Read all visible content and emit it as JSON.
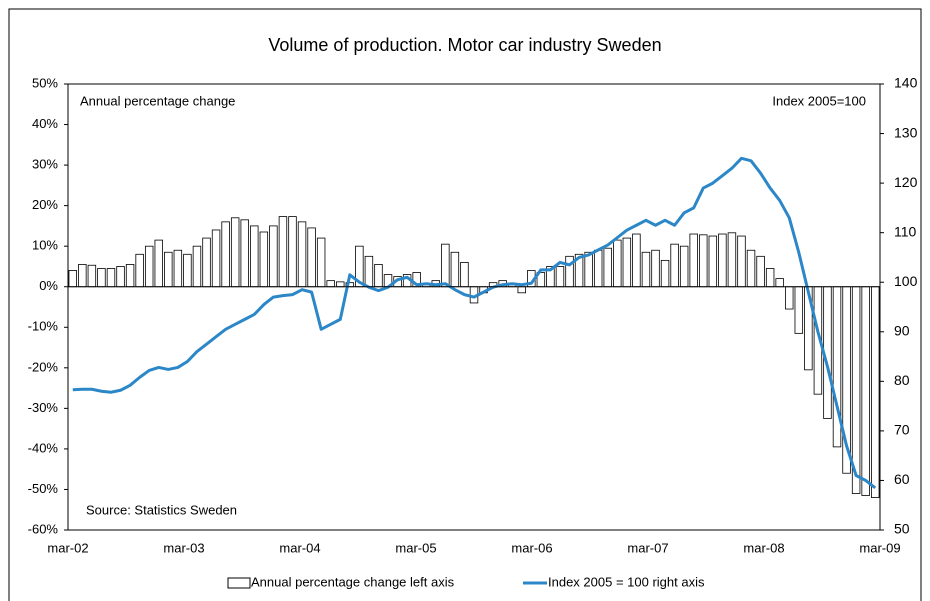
{
  "chart_data": {
    "type": "bar-line",
    "title": "Volume of production. Motor car industry Sweden",
    "annotations": [
      "Annual percentage change",
      "Index 2005=100",
      "Source: Statistics Sweden"
    ],
    "categories": [
      "mar-02",
      null,
      null,
      null,
      null,
      null,
      null,
      null,
      null,
      null,
      null,
      null,
      "mar-03",
      null,
      null,
      null,
      null,
      null,
      null,
      null,
      null,
      null,
      null,
      null,
      "mar-04",
      null,
      null,
      null,
      null,
      null,
      null,
      null,
      null,
      null,
      null,
      null,
      "mar-05",
      null,
      null,
      null,
      null,
      null,
      null,
      null,
      null,
      null,
      null,
      null,
      "mar-06",
      null,
      null,
      null,
      null,
      null,
      null,
      null,
      null,
      null,
      null,
      null,
      "mar-07",
      null,
      null,
      null,
      null,
      null,
      null,
      null,
      null,
      null,
      null,
      null,
      "mar-08",
      null,
      null,
      null,
      null,
      null,
      null,
      null,
      null,
      null,
      null,
      null,
      "mar-09"
    ],
    "series": [
      {
        "name": "Annual percentage change left axis",
        "type": "bar",
        "color": "#ffffff",
        "edge_color": "#000000",
        "axis": "y",
        "values": [
          4,
          5.5,
          5.3,
          4.5,
          4.5,
          5,
          5.5,
          8,
          10,
          11.5,
          8.5,
          9,
          8,
          10,
          12,
          14,
          16,
          17,
          16.5,
          15,
          13.5,
          15,
          17.3,
          17.3,
          16,
          14.5,
          12,
          1.5,
          1.2,
          1,
          10,
          7.5,
          5.5,
          3,
          2.5,
          3,
          3.5,
          0.5,
          1.5,
          10.5,
          8.5,
          6,
          -4,
          -1.5,
          1,
          1.5,
          0.5,
          -1.5,
          4,
          3.5,
          5,
          5,
          7.5,
          8,
          8.5,
          9,
          9.5,
          11.5,
          12,
          13,
          8.5,
          9,
          6.5,
          10.5,
          10,
          13,
          12.8,
          12.5,
          13,
          13.3,
          12.5,
          9,
          7.5,
          4.5,
          2,
          -5.5,
          -11.5,
          -20.5,
          -26.5,
          -32.5,
          -39.5,
          -46,
          -51,
          -51.5,
          -52
        ]
      },
      {
        "name": "Index 2005 = 100 right axis",
        "type": "line",
        "color": "#2b87c8",
        "axis": "y2",
        "values": [
          78.3,
          78.4,
          78.4,
          78,
          77.8,
          78.2,
          79.2,
          80.8,
          82.2,
          82.8,
          82.4,
          82.8,
          84,
          86,
          87.5,
          89,
          90.5,
          91.5,
          92.5,
          93.5,
          95.5,
          97,
          97.3,
          97.5,
          98.5,
          98,
          90.5,
          91.5,
          92.5,
          101.5,
          100,
          99,
          98.3,
          99,
          100.5,
          101,
          99.5,
          99.7,
          99.5,
          99.7,
          98.5,
          97.5,
          97,
          98,
          99,
          99.5,
          99.7,
          99.5,
          99.8,
          102.5,
          102.5,
          104,
          103.5,
          105,
          105.5,
          106.5,
          107.5,
          109,
          110.5,
          111.5,
          112.5,
          111.5,
          112.5,
          111.5,
          114,
          115,
          119,
          120,
          121.5,
          123,
          125,
          124.5,
          122,
          119,
          116.5,
          113,
          106,
          98,
          90,
          83,
          75,
          67,
          61,
          60,
          58.5
        ]
      }
    ],
    "ylim": [
      -60,
      50
    ],
    "yticks": [
      {
        "value": -60,
        "label": "-60%"
      },
      {
        "value": -50,
        "label": "-50%"
      },
      {
        "value": -40,
        "label": "-40%"
      },
      {
        "value": -30,
        "label": "-30%"
      },
      {
        "value": -20,
        "label": "-20%"
      },
      {
        "value": -10,
        "label": "-10%"
      },
      {
        "value": 0,
        "label": "0%"
      },
      {
        "value": 10,
        "label": "10%"
      },
      {
        "value": 20,
        "label": "20%"
      },
      {
        "value": 30,
        "label": "30%"
      },
      {
        "value": 40,
        "label": "40%"
      },
      {
        "value": 50,
        "label": "50%"
      }
    ],
    "y2lim": [
      50,
      140
    ],
    "y2ticks": [
      50,
      60,
      70,
      80,
      90,
      100,
      110,
      120,
      130,
      140
    ],
    "y2_color": "#2b87c8",
    "grid": false,
    "legend": "bottom"
  }
}
